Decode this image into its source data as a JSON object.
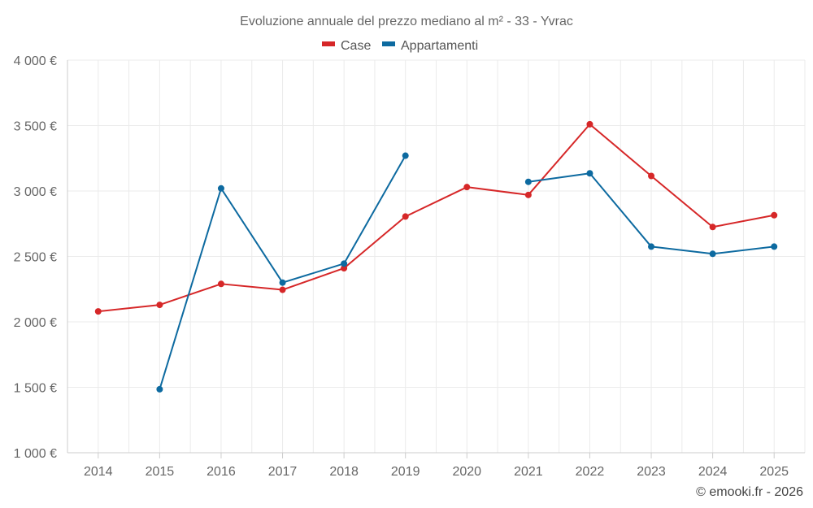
{
  "chart_data": {
    "type": "line",
    "title": "Evoluzione annuale del prezzo mediano al m² - 33 - Yvrac",
    "xlabel": "",
    "ylabel": "",
    "categories": [
      "2014",
      "2015",
      "2016",
      "2017",
      "2018",
      "2019",
      "2020",
      "2021",
      "2022",
      "2023",
      "2024",
      "2025"
    ],
    "ylim": [
      1000,
      4000
    ],
    "yticks": [
      1000,
      1500,
      2000,
      2500,
      3000,
      3500,
      4000
    ],
    "ytick_labels": [
      "1 000 €",
      "1 500 €",
      "2 000 €",
      "2 500 €",
      "3 000 €",
      "3 500 €",
      "4 000 €"
    ],
    "grid": true,
    "legend_position": "top-center",
    "series": [
      {
        "name": "Case",
        "color": "#d62728",
        "values": [
          2080,
          2130,
          2290,
          2245,
          2410,
          2805,
          3030,
          2970,
          3510,
          3115,
          2725,
          2815
        ]
      },
      {
        "name": "Appartamenti",
        "color": "#0d6aa0",
        "values": [
          null,
          1485,
          3020,
          2300,
          2445,
          3270,
          null,
          3070,
          3135,
          2575,
          2520,
          2575
        ]
      }
    ]
  },
  "credit": "© emooki.fr - 2026"
}
